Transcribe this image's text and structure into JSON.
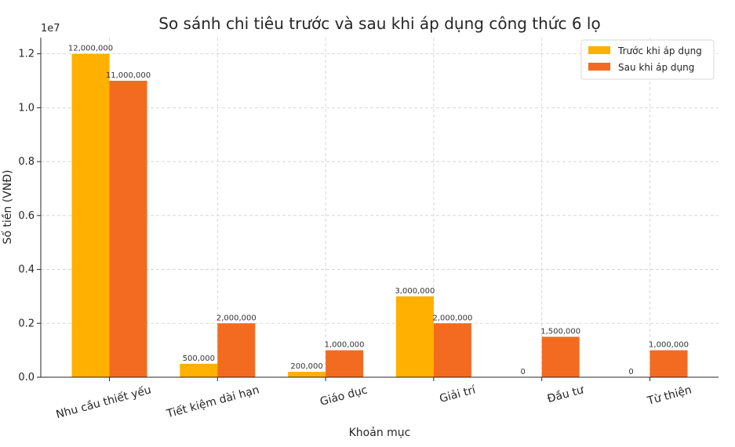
{
  "chart_data": {
    "type": "bar",
    "title": "So sánh chi tiêu trước và sau khi áp dụng công thức 6 lọ",
    "xlabel": "Khoản mục",
    "ylabel": "Số tiền (VNĐ)",
    "offset_label": "1e7",
    "categories": [
      "Nhu cầu thiết yếu",
      "Tiết kiệm dài hạn",
      "Giáo dục",
      "Giải trí",
      "Đầu tư",
      "Từ thiện"
    ],
    "series": [
      {
        "name": "Trước khi áp dụng",
        "color": "#FFB000",
        "values": [
          12000000,
          500000,
          200000,
          3000000,
          0,
          0
        ],
        "labels": [
          "12,000,000",
          "500,000",
          "200,000",
          "3,000,000",
          "0",
          "0"
        ]
      },
      {
        "name": "Sau khi áp dụng",
        "color": "#F26B21",
        "values": [
          11000000,
          2000000,
          1000000,
          2000000,
          1500000,
          1000000
        ],
        "labels": [
          "11,000,000",
          "2,000,000",
          "1,000,000",
          "2,000,000",
          "1,500,000",
          "1,000,000"
        ]
      }
    ],
    "ylim": [
      0,
      12600000
    ],
    "yticks": [
      0,
      2000000,
      4000000,
      6000000,
      8000000,
      10000000,
      12000000
    ],
    "ytick_labels": [
      "0.0",
      "0.2",
      "0.4",
      "0.6",
      "0.8",
      "1.0",
      "1.2"
    ],
    "grid": true,
    "legend_position": "top-right"
  }
}
